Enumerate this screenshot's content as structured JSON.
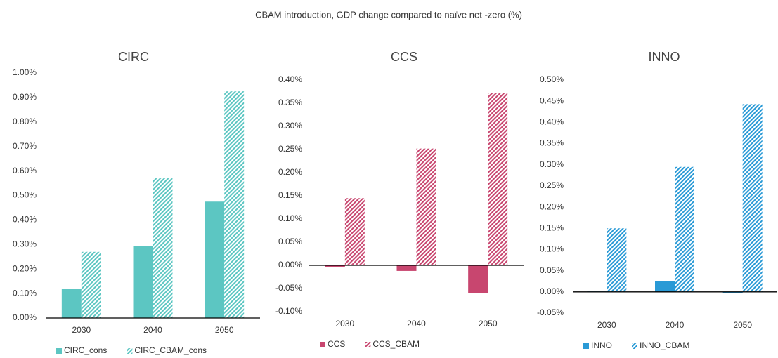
{
  "title": "CBAM introduction, GDP change compared to naïve net -zero (%)",
  "chart_data": [
    {
      "type": "bar",
      "title": "CIRC",
      "categories": [
        "2030",
        "2040",
        "2050"
      ],
      "series": [
        {
          "name": "CIRC_cons",
          "color": "#5cc6c2",
          "hatched": false,
          "values": [
            0.12,
            0.295,
            0.475
          ]
        },
        {
          "name": "CIRC_CBAM_cons",
          "color": "#5cc6c2",
          "hatched": true,
          "values": [
            0.27,
            0.57,
            0.925
          ]
        }
      ],
      "ylim": [
        0,
        1
      ],
      "yticks": [
        {
          "value": 0,
          "label": "0.00%"
        },
        {
          "value": 0.1,
          "label": "0.10%"
        },
        {
          "value": 0.2,
          "label": "0.20%"
        },
        {
          "value": 0.3,
          "label": "0.30%"
        },
        {
          "value": 0.4,
          "label": "0.40%"
        },
        {
          "value": 0.5,
          "label": "0.50%"
        },
        {
          "value": 0.6,
          "label": "0.60%"
        },
        {
          "value": 0.7,
          "label": "0.70%"
        },
        {
          "value": 0.8,
          "label": "0.80%"
        },
        {
          "value": 0.9,
          "label": "0.90%"
        },
        {
          "value": 1,
          "label": "1.00%"
        }
      ],
      "grid": false,
      "legend": "bottom"
    },
    {
      "type": "bar",
      "title": "CCS",
      "categories": [
        "2030",
        "2040",
        "2050"
      ],
      "series": [
        {
          "name": "CCS",
          "color": "#c8466f",
          "hatched": false,
          "values": [
            -0.003,
            -0.012,
            -0.06
          ]
        },
        {
          "name": "CCS_CBAM",
          "color": "#c8466f",
          "hatched": true,
          "values": [
            0.145,
            0.252,
            0.372
          ]
        }
      ],
      "ylim": [
        -0.1,
        0.4
      ],
      "yticks": [
        {
          "value": -0.1,
          "label": "-0.10%"
        },
        {
          "value": -0.05,
          "label": "-0.05%"
        },
        {
          "value": 0,
          "label": "0.00%"
        },
        {
          "value": 0.05,
          "label": "0.05%"
        },
        {
          "value": 0.1,
          "label": "0.10%"
        },
        {
          "value": 0.15,
          "label": "0.15%"
        },
        {
          "value": 0.2,
          "label": "0.20%"
        },
        {
          "value": 0.25,
          "label": "0.25%"
        },
        {
          "value": 0.3,
          "label": "0.30%"
        },
        {
          "value": 0.35,
          "label": "0.35%"
        },
        {
          "value": 0.4,
          "label": "0.40%"
        }
      ],
      "grid": false,
      "legend": "bottom"
    },
    {
      "type": "bar",
      "title": "INNO",
      "categories": [
        "2030",
        "2040",
        "2050"
      ],
      "series": [
        {
          "name": "INNO",
          "color": "#2a9ad6",
          "hatched": false,
          "values": [
            0.001,
            0.025,
            -0.003
          ]
        },
        {
          "name": "INNO_CBAM",
          "color": "#2a9ad6",
          "hatched": true,
          "values": [
            0.15,
            0.295,
            0.443
          ]
        }
      ],
      "ylim": [
        -0.05,
        0.5
      ],
      "yticks": [
        {
          "value": -0.05,
          "label": "-0.05%"
        },
        {
          "value": 0,
          "label": "0.00%"
        },
        {
          "value": 0.05,
          "label": "0.05%"
        },
        {
          "value": 0.1,
          "label": "0.10%"
        },
        {
          "value": 0.15,
          "label": "0.15%"
        },
        {
          "value": 0.2,
          "label": "0.20%"
        },
        {
          "value": 0.25,
          "label": "0.25%"
        },
        {
          "value": 0.3,
          "label": "0.30%"
        },
        {
          "value": 0.35,
          "label": "0.35%"
        },
        {
          "value": 0.4,
          "label": "0.40%"
        },
        {
          "value": 0.45,
          "label": "0.45%"
        },
        {
          "value": 0.5,
          "label": "0.50%"
        }
      ],
      "grid": false,
      "legend": "bottom"
    }
  ]
}
